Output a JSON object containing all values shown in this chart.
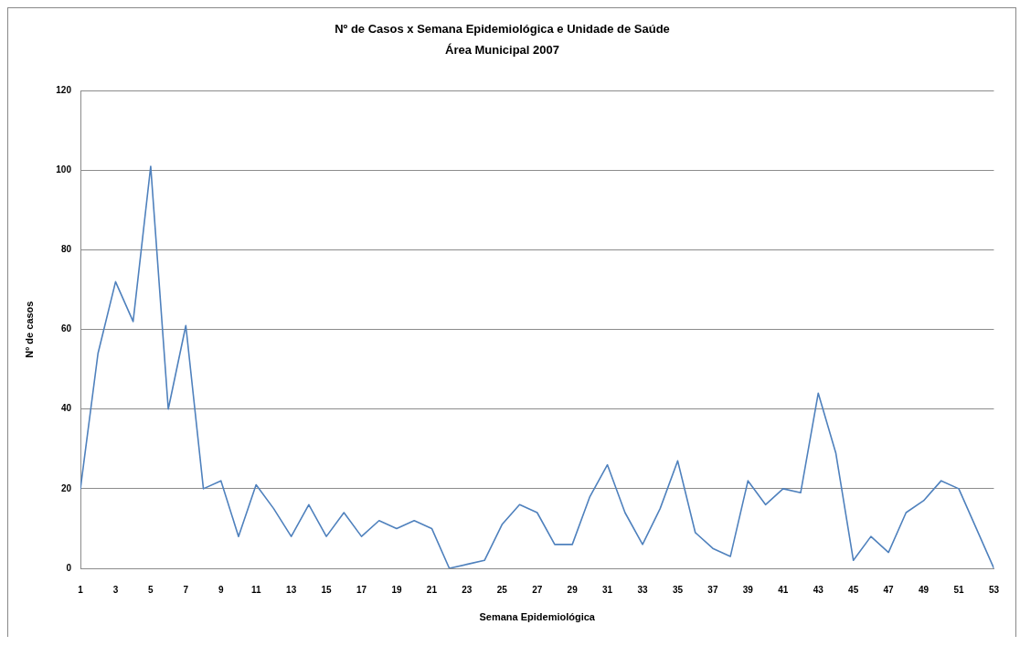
{
  "chart_data": {
    "type": "line",
    "title": "Nº de Casos x Semana Epidemiológica e Unidade de Saúde",
    "subtitle": "Área Municipal 2007",
    "xlabel": "Semana Epidemiológica",
    "ylabel": "Nº de casos",
    "x": [
      1,
      2,
      3,
      4,
      5,
      6,
      7,
      8,
      9,
      10,
      11,
      12,
      13,
      14,
      15,
      16,
      17,
      18,
      19,
      20,
      21,
      22,
      23,
      24,
      25,
      26,
      27,
      28,
      29,
      30,
      31,
      32,
      33,
      34,
      35,
      36,
      37,
      38,
      39,
      40,
      41,
      42,
      43,
      44,
      45,
      46,
      47,
      48,
      49,
      50,
      51,
      52,
      53
    ],
    "series": [
      {
        "color": "#4f81bd",
        "values": [
          20,
          54,
          72,
          62,
          101,
          40,
          61,
          20,
          22,
          8,
          21,
          15,
          8,
          16,
          8,
          14,
          8,
          12,
          10,
          12,
          10,
          0,
          1,
          2,
          11,
          16,
          14,
          6,
          6,
          18,
          26,
          14,
          6,
          15,
          27,
          9,
          5,
          3,
          22,
          16,
          20,
          19,
          44,
          29,
          2,
          8,
          4,
          14,
          17,
          22,
          20,
          10,
          0
        ]
      }
    ],
    "xlim": [
      1,
      53
    ],
    "xticks": [
      1,
      3,
      5,
      7,
      9,
      11,
      13,
      15,
      17,
      19,
      21,
      23,
      25,
      27,
      29,
      31,
      33,
      35,
      37,
      39,
      41,
      43,
      45,
      47,
      49,
      51,
      53
    ],
    "ylim": [
      0,
      120
    ],
    "yticks": [
      0,
      20,
      40,
      60,
      80,
      100,
      120
    ],
    "grid": "y",
    "marker": "none",
    "line_style": "solid"
  }
}
